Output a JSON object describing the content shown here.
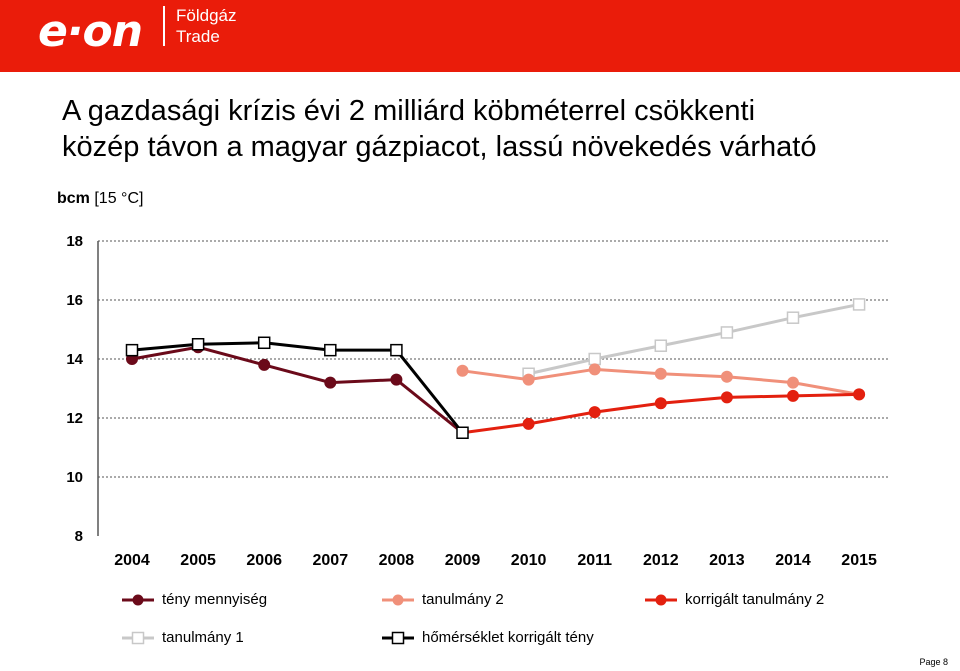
{
  "header": {
    "logo_text": "e·on",
    "sub_line1": "Földgáz",
    "sub_line2": "Trade"
  },
  "slide": {
    "title_line1": "A gazdasági krízis évi 2 milliárd köbméterrel csökkenti",
    "title_line2": "közép távon a magyar gázpiacot, lassú növekedés várható",
    "unit_bold": "bcm",
    "unit_rest": " [15 °C]",
    "page_label": "Page 8"
  },
  "colors": {
    "header_red": "#ea1c0a",
    "teny": "#6b0a1a",
    "tanulmany1": "#c8c8c8",
    "tanulmany2": "#f0907a",
    "korrigalt": "#e3200f",
    "homerseklet": "#000000"
  },
  "chart_data": {
    "type": "line",
    "categories": [
      "2004",
      "2005",
      "2006",
      "2007",
      "2008",
      "2009",
      "2010",
      "2011",
      "2012",
      "2013",
      "2014",
      "2015"
    ],
    "ylim": [
      8,
      18
    ],
    "yticks": [
      8,
      10,
      12,
      14,
      16,
      18
    ],
    "grid": true,
    "legend_position": "bottom",
    "series": [
      {
        "name": "tény mennyiség",
        "color": "#6b0a1a",
        "marker": "circle",
        "values": [
          14.0,
          14.4,
          13.8,
          13.2,
          13.3,
          11.5,
          null,
          null,
          null,
          null,
          null,
          null
        ]
      },
      {
        "name": "tanulmány 2",
        "color": "#f0907a",
        "marker": "circle",
        "values": [
          null,
          null,
          null,
          null,
          null,
          13.6,
          13.3,
          13.65,
          13.5,
          13.4,
          13.2,
          12.8
        ]
      },
      {
        "name": "korrigált tanulmány 2",
        "color": "#e3200f",
        "marker": "circle",
        "values": [
          null,
          null,
          null,
          null,
          null,
          11.5,
          11.8,
          12.2,
          12.5,
          12.7,
          12.75,
          12.8
        ]
      },
      {
        "name": "tanulmány 1",
        "color": "#c8c8c8",
        "marker": "square",
        "values": [
          null,
          null,
          null,
          null,
          null,
          null,
          13.5,
          14.0,
          14.45,
          14.9,
          15.4,
          15.85
        ]
      },
      {
        "name": "hőmérséklet korrigált tény",
        "color": "#000000",
        "marker": "square",
        "values": [
          14.3,
          14.5,
          14.55,
          14.3,
          14.3,
          11.5,
          null,
          null,
          null,
          null,
          null,
          null
        ]
      }
    ]
  }
}
